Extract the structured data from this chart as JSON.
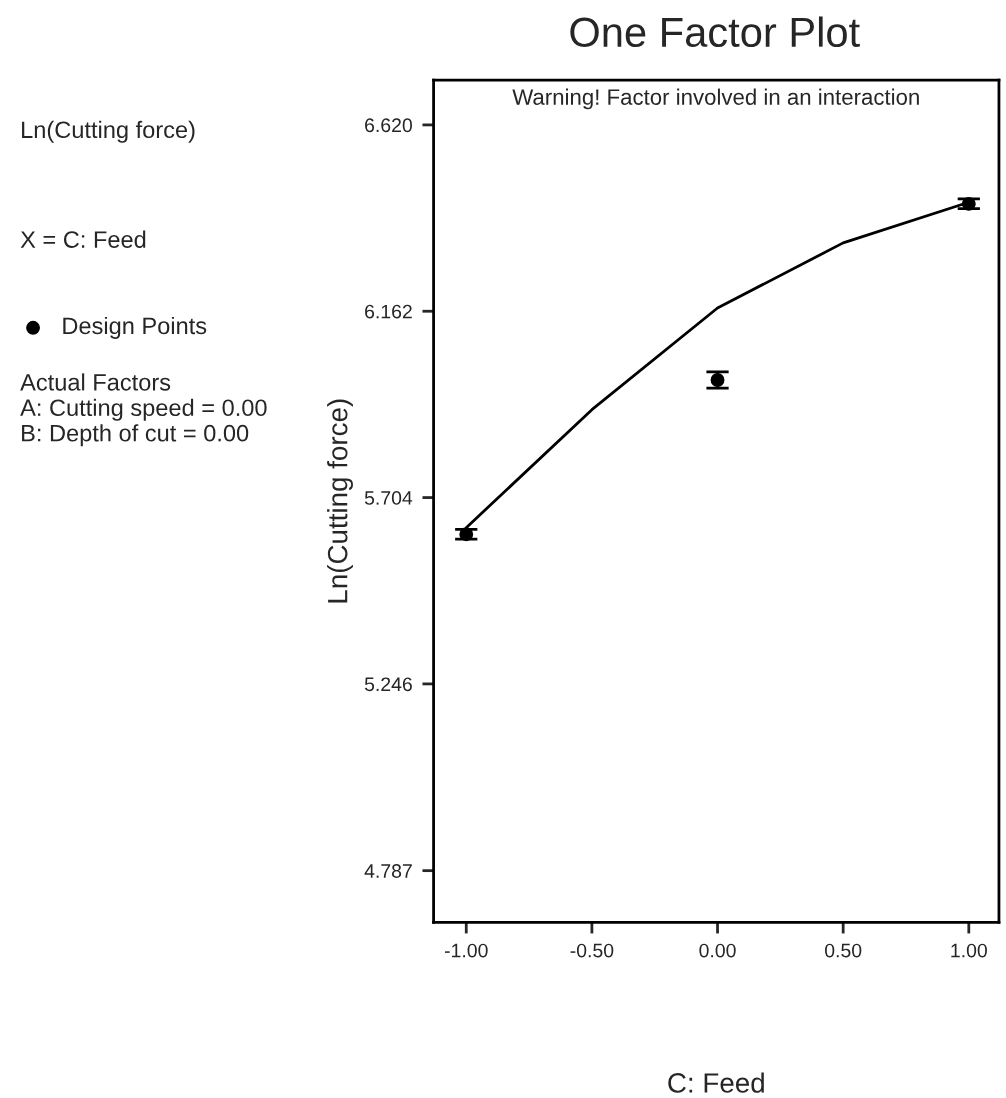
{
  "chart_data": {
    "type": "scatter",
    "title": "One Factor Plot",
    "xlabel": "C: Feed",
    "ylabel": "Ln(Cutting force)",
    "annotations": [
      "Ln(Cutting force)",
      "X = C: Feed",
      "Actual Factors\nA: Cutting speed = 0.00\nB: Depth of cut = 0.00",
      "Warning! Factor involved in an interaction"
    ],
    "series": [
      {
        "type": "line",
        "color": "#000000",
        "x": [
          -1.0,
          -0.5,
          0.0,
          0.5,
          1.0
        ],
        "values": [
          5.63,
          5.92,
          6.17,
          6.33,
          6.43
        ],
        "marker": "none",
        "line_style": "solid"
      },
      {
        "name": "Design Points",
        "color": "#000000",
        "x": [
          -1.0,
          0.0,
          1.0
        ],
        "values": [
          5.614,
          5.993,
          6.426
        ],
        "errors": [
          0.012,
          0.02,
          0.012
        ],
        "marker": "circle"
      }
    ],
    "xlim": [
      -1.13,
      1.12
    ],
    "ylim": [
      4.66,
      6.73
    ],
    "xticks": [
      {
        "value": -1.0,
        "label": "-1.00"
      },
      {
        "value": -0.5,
        "label": "-0.50"
      },
      {
        "value": 0.0,
        "label": "0.00"
      },
      {
        "value": 0.5,
        "label": "0.50"
      },
      {
        "value": 1.0,
        "label": "1.00"
      }
    ],
    "yticks": [
      {
        "value": 4.787,
        "label": "4.787"
      },
      {
        "value": 5.246,
        "label": "5.246"
      },
      {
        "value": 5.704,
        "label": "5.704"
      },
      {
        "value": 6.162,
        "label": "6.162"
      },
      {
        "value": 6.62,
        "label": "6.620"
      }
    ],
    "grid": false,
    "legend": "left"
  }
}
